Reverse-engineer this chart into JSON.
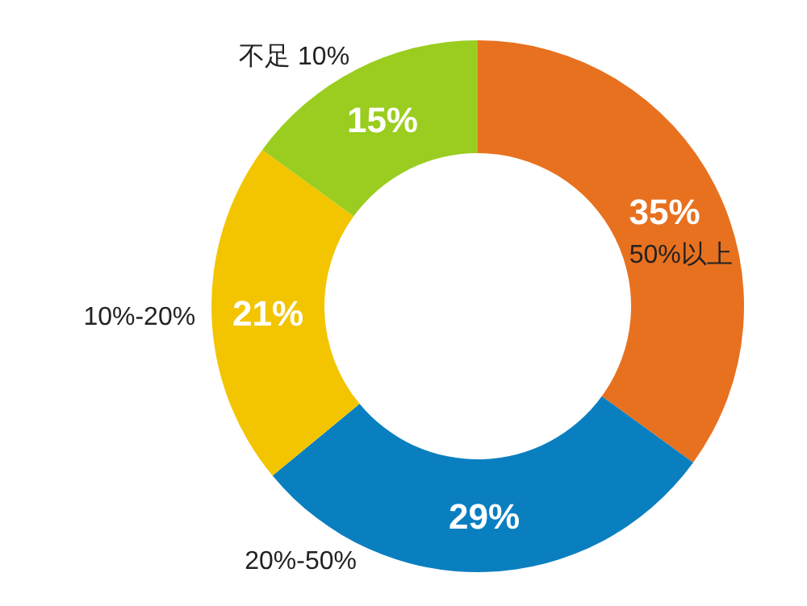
{
  "chart_data": {
    "type": "donut",
    "categories": [
      "50%以上",
      "20%-50%",
      "10%-20%",
      "不足 10%"
    ],
    "values": [
      35,
      29,
      21,
      15
    ],
    "colors": [
      "#e8711f",
      "#0a7fc0",
      "#f2c500",
      "#9acd1f"
    ],
    "value_labels": [
      "35%",
      "29%",
      "21%",
      "15%"
    ]
  }
}
